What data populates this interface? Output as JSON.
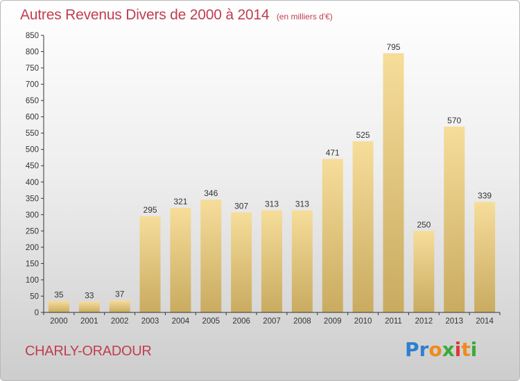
{
  "header": {
    "title": "Autres Revenus Divers de 2000 à 2014",
    "unit": "(en milliers d'€)"
  },
  "location": "CHARLY-ORADOUR",
  "logo": {
    "text": "Proxiti",
    "letters": [
      {
        "ch": "P",
        "color": "#2e7fd0"
      },
      {
        "ch": "r",
        "color": "#2e7fd0"
      },
      {
        "ch": "o",
        "color": "#f08a1c"
      },
      {
        "ch": "x",
        "color": "#3aaa3a"
      },
      {
        "ch": "i",
        "color": "#d93a3a"
      },
      {
        "ch": "t",
        "color": "#f08a1c"
      },
      {
        "ch": "i",
        "color": "#3aaa3a"
      }
    ]
  },
  "chart_data": {
    "type": "bar",
    "title": "Autres Revenus Divers de 2000 à 2014",
    "subtitle": "(en milliers d'€)",
    "categories": [
      "2000",
      "2001",
      "2002",
      "2003",
      "2004",
      "2005",
      "2006",
      "2007",
      "2008",
      "2009",
      "2010",
      "2011",
      "2012",
      "2013",
      "2014"
    ],
    "values": [
      35,
      33,
      37,
      295,
      321,
      346,
      307,
      313,
      313,
      471,
      525,
      795,
      250,
      570,
      339
    ],
    "ylim": [
      0,
      850
    ],
    "yticks": [
      0,
      50,
      100,
      150,
      200,
      250,
      300,
      350,
      400,
      450,
      500,
      550,
      600,
      650,
      700,
      750,
      800,
      850
    ],
    "grid": false,
    "legend": "none",
    "colors": {
      "bar_top": "#f6dd9a",
      "bar_bottom": "#c9ab60",
      "axis": "#333333",
      "text": "#333333"
    }
  }
}
